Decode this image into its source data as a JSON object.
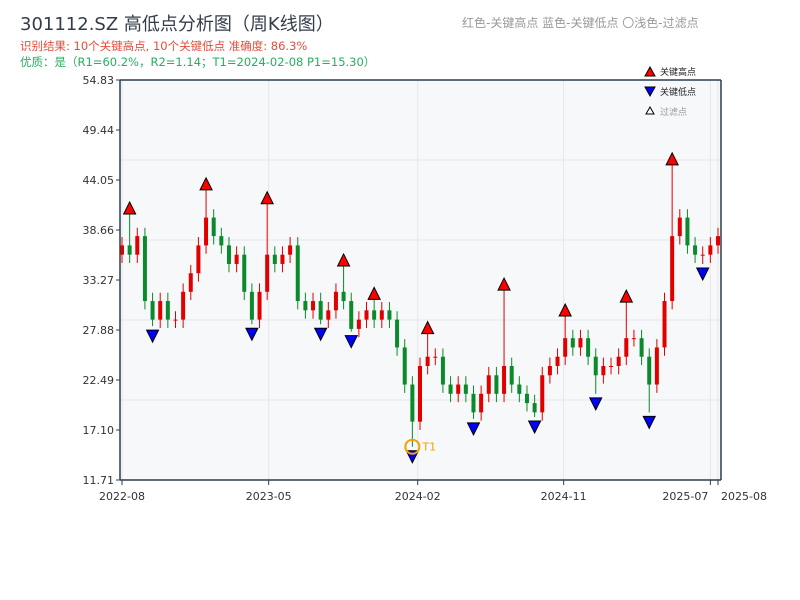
{
  "header": {
    "title": "301112.SZ 高低点分析图（周K线图）",
    "result": "识别结果: 10个关键高点, 10个关键低点  准确度: 86.3%",
    "quality": "优质：是（R1=60.2%，R2=1.14；T1=2024-02-08 P1=15.30）",
    "color_note": "红色-关键高点     蓝色-关键低点  〇浅色-过滤点"
  },
  "chart_data": {
    "type": "candlestick",
    "title": "301112.SZ 高低点分析图（周K线图）",
    "ylim": [
      11.71,
      54.83
    ],
    "yticks": [
      "11.71",
      "17.10",
      "22.49",
      "27.88",
      "33.27",
      "38.66",
      "44.05",
      "49.44",
      "54.83"
    ],
    "xticks": [
      {
        "label": "2022-08",
        "pos": 0
      },
      {
        "label": "2023-05",
        "pos": 19.2
      },
      {
        "label": "2024-02",
        "pos": 38.7
      },
      {
        "label": "2024-11",
        "pos": 57.8
      },
      {
        "label": "2025-07",
        "pos": 77
      },
      {
        "label": "2025-08",
        "pos": 78
      }
    ],
    "first_open": 36,
    "closes": [
      37,
      36,
      38,
      31,
      29,
      31,
      29,
      29,
      32,
      34,
      37,
      40,
      38,
      37,
      35,
      36,
      32,
      29,
      32,
      36,
      35,
      36,
      37,
      31,
      30,
      31,
      29,
      30,
      32,
      31,
      28,
      29,
      30,
      29,
      30,
      29,
      26,
      22,
      18,
      24,
      25,
      25,
      22,
      21,
      22,
      21,
      19,
      21,
      23,
      21,
      24,
      22,
      21,
      20,
      19,
      23,
      24,
      25,
      27,
      26,
      27,
      25,
      23,
      24,
      24,
      25,
      27,
      27,
      25,
      22,
      26,
      31,
      38,
      40,
      37,
      36,
      36,
      37,
      38
    ],
    "key_highs": [
      {
        "i": 1,
        "price": 40.6
      },
      {
        "i": 11,
        "price": 43.2
      },
      {
        "i": 19,
        "price": 41.7
      },
      {
        "i": 29,
        "price": 35.0
      },
      {
        "i": 33,
        "price": 31.4
      },
      {
        "i": 40,
        "price": 27.7
      },
      {
        "i": 50,
        "price": 32.4
      },
      {
        "i": 58,
        "price": 29.6
      },
      {
        "i": 66,
        "price": 31.1
      },
      {
        "i": 72,
        "price": 45.9
      }
    ],
    "key_lows": [
      {
        "i": 4,
        "price": 28.3
      },
      {
        "i": 17,
        "price": 28.5
      },
      {
        "i": 26,
        "price": 28.5
      },
      {
        "i": 30,
        "price": 27.7
      },
      {
        "i": 38,
        "price": 15.3
      },
      {
        "i": 46,
        "price": 18.3
      },
      {
        "i": 54,
        "price": 18.5
      },
      {
        "i": 62,
        "price": 21.0
      },
      {
        "i": 69,
        "price": 19.0
      },
      {
        "i": 76,
        "price": 35.0
      }
    ],
    "t1": {
      "i": 38,
      "price": 15.3,
      "label": "T1"
    },
    "legend": {
      "placement": "top-right",
      "items": [
        "关键高点",
        "关键低点",
        "过滤点"
      ]
    },
    "colors": {
      "up": "#e00000",
      "down": "#0a8a2a",
      "high": "#ff0000",
      "low": "#0000ff",
      "t1": "#f5a000"
    }
  }
}
